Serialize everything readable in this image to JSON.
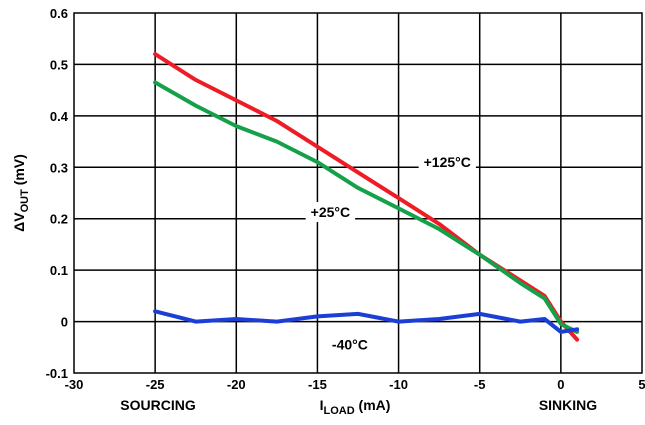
{
  "chart_data": {
    "type": "line",
    "xlim": [
      -30,
      5
    ],
    "ylim": [
      -0.1,
      0.6
    ],
    "x_ticks": [
      -30,
      -25,
      -20,
      -15,
      -10,
      -5,
      0,
      5
    ],
    "y_ticks": [
      -0.1,
      0,
      0.1,
      0.2,
      0.3,
      0.4,
      0.5,
      0.6
    ],
    "x_tick_labels": [
      "-30",
      "-25",
      "-20",
      "-15",
      "-10",
      "-5",
      "0",
      "5"
    ],
    "y_tick_labels": [
      "-0.1",
      "0",
      "0.1",
      "0.2",
      "0.3",
      "0.4",
      "0.5",
      "0.6"
    ],
    "grid": true,
    "xlabel": {
      "main": "I",
      "sub": "LOAD",
      "suffix": " (mA)"
    },
    "ylabel": {
      "prefix": "ΔV",
      "sub": "OUT",
      "suffix": " (mV)"
    },
    "bottom_left_label": "SOURCING",
    "bottom_right_label": "SINKING",
    "series": [
      {
        "name": "+125°C",
        "color": "#ee1c24",
        "x": [
          -25,
          -22.5,
          -20,
          -17.5,
          -15,
          -12.5,
          -10,
          -7.5,
          -5,
          -2.5,
          -1,
          0,
          1
        ],
        "y": [
          0.52,
          0.47,
          0.43,
          0.39,
          0.34,
          0.29,
          0.24,
          0.19,
          0.13,
          0.08,
          0.05,
          0.0,
          -0.035
        ]
      },
      {
        "name": "+25°C",
        "color": "#15a04a",
        "x": [
          -25,
          -22.5,
          -20,
          -17.5,
          -15,
          -12.5,
          -10,
          -7.5,
          -5,
          -2.5,
          -1,
          0,
          1
        ],
        "y": [
          0.465,
          0.42,
          0.38,
          0.35,
          0.31,
          0.26,
          0.22,
          0.18,
          0.13,
          0.075,
          0.045,
          -0.005,
          -0.02
        ]
      },
      {
        "name": "-40°C",
        "color": "#1b3fd6",
        "x": [
          -25,
          -22.5,
          -20,
          -17.5,
          -15,
          -12.5,
          -10,
          -7.5,
          -5,
          -2.5,
          -1,
          0,
          1
        ],
        "y": [
          0.02,
          0.0,
          0.005,
          0.0,
          0.01,
          0.015,
          0.0,
          0.005,
          0.015,
          0.0,
          0.005,
          -0.02,
          -0.015
        ]
      }
    ],
    "annotations": [
      {
        "text": "+125°C",
        "x": -7,
        "y": 0.31
      },
      {
        "text": "+25°C",
        "x": -14.2,
        "y": 0.213
      },
      {
        "text": "-40°C",
        "x": -13,
        "y": -0.045
      }
    ]
  }
}
